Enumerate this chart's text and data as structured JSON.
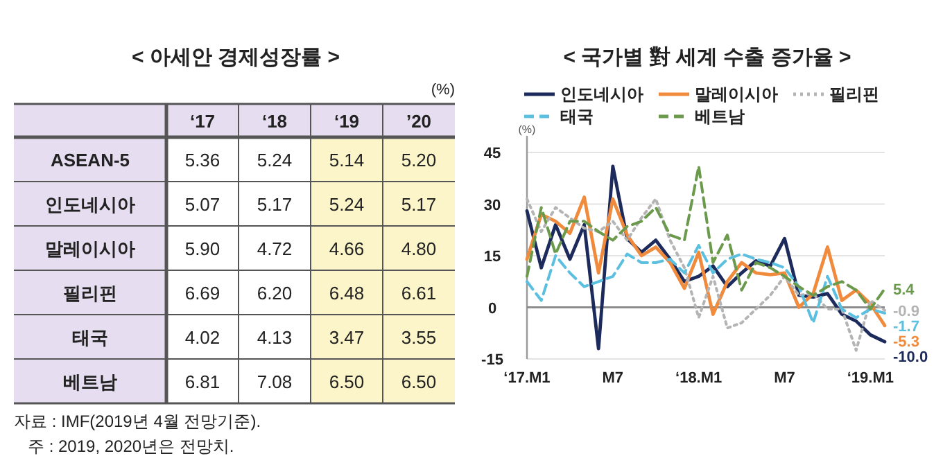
{
  "chart_data": [
    {
      "type": "heatmap",
      "title": "< 아세안 경제성장률 >",
      "subtitle": "(%)",
      "categories": [
        "‘17",
        "‘18",
        "‘19",
        "’20"
      ],
      "y_categories": [
        "ASEAN-5",
        "인도네시아",
        "말레이시아",
        "필리핀",
        "태국",
        "베트남"
      ],
      "cells": [
        [
          5.36,
          5.24,
          5.14,
          5.2
        ],
        [
          5.07,
          5.17,
          5.24,
          5.17
        ],
        [
          5.9,
          4.72,
          4.66,
          4.8
        ],
        [
          6.69,
          6.2,
          6.48,
          6.61
        ],
        [
          4.02,
          4.13,
          3.47,
          3.55
        ],
        [
          6.81,
          7.08,
          6.5,
          6.5
        ]
      ],
      "cell_labels": [
        [
          "5.36",
          "5.24",
          "5.14",
          "5.20"
        ],
        [
          "5.07",
          "5.17",
          "5.24",
          "5.17"
        ],
        [
          "5.90",
          "4.72",
          "4.66",
          "4.80"
        ],
        [
          "6.69",
          "6.20",
          "6.48",
          "6.61"
        ],
        [
          "4.02",
          "4.13",
          "3.47",
          "3.55"
        ],
        [
          "6.81",
          "7.08",
          "6.50",
          "6.50"
        ]
      ],
      "bands": [
        {
          "axis": "x",
          "from": "‘19",
          "to": "’20",
          "color": "#fcf5c9"
        }
      ],
      "annotations": [
        "자료 : IMF(2019년 4월 전망기준).",
        "주 : 2019, 2020년은 전망치."
      ]
    },
    {
      "type": "line",
      "title": "< 국가별 對 세계 수출 증가율 >",
      "ylabel": "(%)",
      "x": [
        "2017-01",
        "2017-02",
        "2017-03",
        "2017-04",
        "2017-05",
        "2017-06",
        "2017-07",
        "2017-08",
        "2017-09",
        "2017-10",
        "2017-11",
        "2017-12",
        "2018-01",
        "2018-02",
        "2018-03",
        "2018-04",
        "2018-05",
        "2018-06",
        "2018-07",
        "2018-08",
        "2018-09",
        "2018-10",
        "2018-11",
        "2018-12",
        "2019-01",
        "2019-02"
      ],
      "xlim": [
        "2017-01",
        "2019-02"
      ],
      "xticks": [
        {
          "value": "2017-01",
          "label": "‘17.M1"
        },
        {
          "value": "2017-07",
          "label": "M7"
        },
        {
          "value": "2018-01",
          "label": "‘18.M1"
        },
        {
          "value": "2018-07",
          "label": "M7"
        },
        {
          "value": "2019-01",
          "label": "‘19.M1"
        }
      ],
      "ylim": [
        -15,
        45
      ],
      "yticks": [
        -15,
        0,
        15,
        30,
        45
      ],
      "grid": "y",
      "legend": "top",
      "ref_lines": [
        {
          "axis": "y",
          "value": 0,
          "color": "#8c8c8c"
        }
      ],
      "series": [
        {
          "name": "인도네시아",
          "color": "#1c2a5c",
          "line_style": "solid",
          "values": [
            28,
            11.5,
            24,
            14,
            24,
            -12,
            41,
            20,
            16,
            19.5,
            14,
            7.5,
            9,
            12,
            6,
            10,
            13.5,
            12,
            20,
            3.5,
            3,
            4,
            -2,
            -4,
            -8,
            -10
          ],
          "value_labels": [
            null,
            null,
            null,
            null,
            null,
            null,
            null,
            null,
            null,
            null,
            null,
            null,
            null,
            null,
            null,
            null,
            null,
            null,
            null,
            null,
            null,
            null,
            null,
            null,
            null,
            "-10.0"
          ]
        },
        {
          "name": "말레이시아",
          "color": "#f08a3c",
          "line_style": "solid",
          "values": [
            14,
            27,
            25,
            21.5,
            32,
            10,
            31.5,
            21,
            15,
            17.5,
            13,
            5.5,
            16,
            -2,
            7.5,
            13,
            10,
            9.5,
            10,
            0,
            4,
            17.5,
            2,
            5,
            1,
            -5.3
          ],
          "value_labels": [
            null,
            null,
            null,
            null,
            null,
            null,
            null,
            null,
            null,
            null,
            null,
            null,
            null,
            null,
            null,
            null,
            null,
            null,
            null,
            null,
            null,
            null,
            null,
            null,
            null,
            "-5.3"
          ]
        },
        {
          "name": "필리핀",
          "color": "#b4b4b4",
          "line_style": "dotted",
          "values": [
            31.5,
            22,
            29,
            26,
            23,
            22,
            25,
            19.5,
            26,
            31.5,
            19.5,
            11.5,
            -3,
            9,
            -6,
            -4.5,
            -0.5,
            3.5,
            9,
            3.5,
            4,
            -0.5,
            -0.5,
            -12.5,
            2,
            -0.9
          ],
          "value_labels": [
            null,
            null,
            null,
            null,
            null,
            null,
            null,
            null,
            null,
            null,
            null,
            null,
            null,
            null,
            null,
            null,
            null,
            null,
            null,
            null,
            null,
            null,
            null,
            null,
            null,
            "-0.9"
          ]
        },
        {
          "name": "태국",
          "color": "#5bbfe0",
          "line_style": "dashed",
          "values": [
            7.5,
            2,
            15,
            10,
            6,
            7.5,
            9,
            15.5,
            13,
            13,
            14,
            10,
            18,
            10,
            14,
            15.5,
            14,
            13,
            11.5,
            6,
            -4.5,
            9,
            -0.5,
            -3,
            -0.5,
            -1.7
          ],
          "value_labels": [
            null,
            null,
            null,
            null,
            null,
            null,
            null,
            null,
            null,
            null,
            null,
            null,
            null,
            null,
            null,
            null,
            null,
            null,
            null,
            null,
            null,
            null,
            null,
            null,
            null,
            "-1.7"
          ]
        },
        {
          "name": "베트남",
          "color": "#6b9a4c",
          "line_style": "dashed",
          "values": [
            9,
            29,
            15.5,
            25,
            25,
            22,
            19.5,
            23.5,
            25,
            29,
            21,
            19.5,
            41,
            13,
            21,
            5,
            13,
            11.5,
            9,
            6,
            3.5,
            6,
            7.5,
            5,
            -0.5,
            5.4
          ],
          "value_labels": [
            null,
            null,
            null,
            null,
            null,
            null,
            null,
            null,
            null,
            null,
            null,
            null,
            null,
            null,
            null,
            null,
            null,
            null,
            null,
            null,
            null,
            null,
            null,
            null,
            null,
            "5.4"
          ]
        }
      ]
    }
  ]
}
